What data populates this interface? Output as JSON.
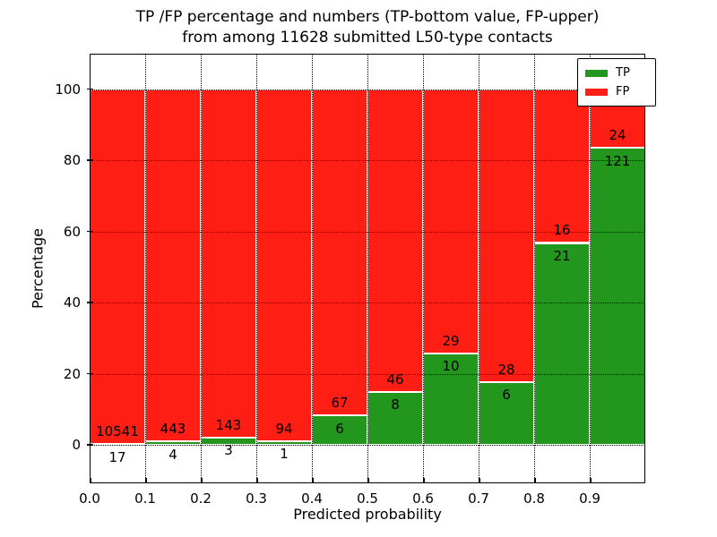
{
  "title": {
    "line1": "TP /FP percentage and numbers (TP-bottom value, FP-upper)",
    "line2": "from among 11628 submitted L50-type contacts"
  },
  "axes": {
    "xlabel": "Predicted probability",
    "ylabel": "Percentage",
    "yticks": [
      0,
      20,
      40,
      60,
      80,
      100
    ],
    "xtick_labels": [
      "0.0",
      "0.1",
      "0.2",
      "0.3",
      "0.4",
      "0.5",
      "0.6",
      "0.7",
      "0.8",
      "0.9"
    ]
  },
  "legend": [
    {
      "label": "TP",
      "color": "#23961d"
    },
    {
      "label": "FP",
      "color": "#fe1e14"
    }
  ],
  "colors": {
    "tp": "#23961d",
    "fp": "#fe1e14",
    "bar_edge": "#ffffff",
    "text": "#000000"
  },
  "chart_data": {
    "type": "bar",
    "stacked": true,
    "normalized_to_percent": true,
    "title": "TP /FP percentage and numbers (TP-bottom value, FP-upper) from among 11628 submitted L50-type contacts",
    "xlabel": "Predicted probability",
    "ylabel": "Percentage",
    "bin_edges": [
      0.0,
      0.1,
      0.2,
      0.3,
      0.4,
      0.5,
      0.6,
      0.7,
      0.8,
      0.9,
      1.0
    ],
    "series": [
      {
        "name": "TP",
        "counts": [
          17,
          4,
          3,
          1,
          6,
          8,
          10,
          6,
          21,
          121
        ]
      },
      {
        "name": "FP",
        "counts": [
          10541,
          443,
          143,
          94,
          67,
          46,
          29,
          28,
          16,
          24
        ]
      }
    ],
    "tp_percent": [
      0.16,
      0.89,
      2.05,
      1.05,
      8.22,
      14.81,
      25.64,
      17.65,
      56.76,
      83.45
    ],
    "total_submitted": 11628,
    "xlim": [
      0.0,
      1.0
    ],
    "ylim": [
      -10.8,
      110.2
    ],
    "grid": "dotted, drawn above bars",
    "legend_position": "upper right"
  }
}
